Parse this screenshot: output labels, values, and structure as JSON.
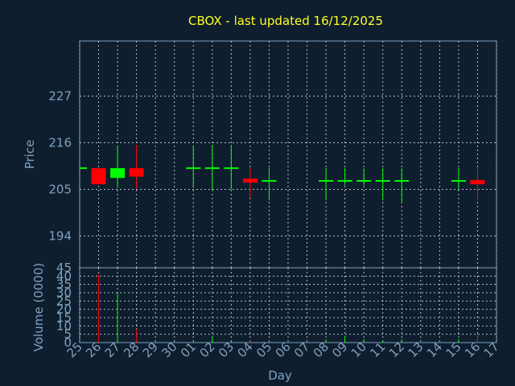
{
  "title": "CBOX - last updated 16/12/2025",
  "chart_data": [
    {
      "type": "candlestick",
      "ylabel": "Price",
      "ylim": [
        186.5,
        240
      ],
      "yticks": [
        194,
        205,
        216,
        227
      ],
      "grid": true,
      "colors": {
        "up": "#00ff00",
        "down": "#ff0000",
        "flat": "#00ff00"
      },
      "candles": [
        {
          "day": "25",
          "open": 210.0,
          "high": 210.0,
          "low": 210.0,
          "close": 210.0
        },
        {
          "day": "26",
          "open": 210.0,
          "high": 210.0,
          "low": 206.2,
          "close": 206.2
        },
        {
          "day": "27",
          "open": 207.7,
          "high": 215.2,
          "low": 205.4,
          "close": 210.0
        },
        {
          "day": "28",
          "open": 210.0,
          "high": 215.5,
          "low": 205.2,
          "close": 208.0
        },
        {
          "day": "01",
          "open": 210.0,
          "high": 215.2,
          "low": 205.4,
          "close": 210.0
        },
        {
          "day": "02",
          "open": 210.0,
          "high": 215.5,
          "low": 204.8,
          "close": 210.0
        },
        {
          "day": "03",
          "open": 210.0,
          "high": 215.5,
          "low": 205.0,
          "close": 210.0
        },
        {
          "day": "04",
          "open": 207.5,
          "high": 210.2,
          "low": 203.1,
          "close": 206.6
        },
        {
          "day": "05",
          "open": 207.0,
          "high": 210.0,
          "low": 202.4,
          "close": 207.0
        },
        {
          "day": "08",
          "open": 207.0,
          "high": 210.0,
          "low": 202.4,
          "close": 207.0
        },
        {
          "day": "09",
          "open": 207.0,
          "high": 210.0,
          "low": 206.0,
          "close": 207.0
        },
        {
          "day": "10",
          "open": 207.0,
          "high": 210.0,
          "low": 206.0,
          "close": 207.0
        },
        {
          "day": "11",
          "open": 207.0,
          "high": 210.0,
          "low": 202.4,
          "close": 207.0
        },
        {
          "day": "12",
          "open": 207.0,
          "high": 210.0,
          "low": 202.0,
          "close": 207.0
        },
        {
          "day": "15",
          "open": 207.0,
          "high": 210.0,
          "low": 205.0,
          "close": 207.0
        },
        {
          "day": "16",
          "open": 207.2,
          "high": 210.0,
          "low": 202.4,
          "close": 206.2
        }
      ]
    },
    {
      "type": "bar",
      "ylabel": "Volume (0000)",
      "xlabel": "Day",
      "ylim": [
        0,
        45
      ],
      "yticks": [
        0,
        5,
        10,
        15,
        20,
        25,
        30,
        35,
        40,
        45
      ],
      "grid": true,
      "categories": [
        "25",
        "26",
        "27",
        "28",
        "29",
        "30",
        "01",
        "02",
        "03",
        "04",
        "05",
        "06",
        "07",
        "08",
        "09",
        "10",
        "11",
        "12",
        "13",
        "14",
        "15",
        "16",
        "17"
      ],
      "values": [
        0,
        41,
        30,
        8,
        0,
        0,
        1,
        4,
        1,
        1,
        0,
        0,
        0,
        2,
        4,
        2,
        1,
        2,
        0,
        0,
        2,
        5,
        0
      ],
      "bar_colors": [
        "#00ff00",
        "#ff0000",
        "#00ff00",
        "#ff0000",
        "#00ff00",
        "#00ff00",
        "#00ff00",
        "#00ff00",
        "#00ff00",
        "#ff0000",
        "#00ff00",
        "#00ff00",
        "#00ff00",
        "#00ff00",
        "#00ff00",
        "#00ff00",
        "#00ff00",
        "#00ff00",
        "#00ff00",
        "#00ff00",
        "#00ff00",
        "#ff0000",
        "#00ff00"
      ]
    }
  ]
}
